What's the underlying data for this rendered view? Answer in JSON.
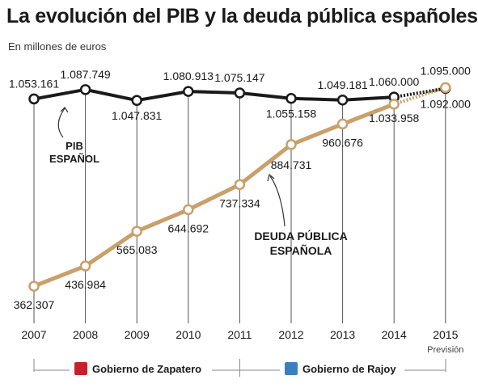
{
  "header": {
    "title": "La evolución del PIB y la deuda pública españoles",
    "subtitle": "En millones de euros"
  },
  "chart_data": {
    "type": "line",
    "x": [
      "2007",
      "2008",
      "2009",
      "2010",
      "2011",
      "2012",
      "2013",
      "2014",
      "2015"
    ],
    "x_sublabels": {
      "2015": "Previsión"
    },
    "series": [
      {
        "name": "PIB ESPAÑOL",
        "color": "#1a1a1a",
        "values": [
          1053161,
          1087749,
          1047831,
          1080913,
          1075147,
          1055158,
          1049181,
          1060000,
          1092000
        ],
        "labels": [
          "1.053.161",
          "1.087.749",
          "1.047.831",
          "1.080.913",
          "1.075.147",
          "1.055.158",
          "1.049.181",
          "1.060.000",
          "1.092.000"
        ],
        "forecast_from_index": 7
      },
      {
        "name": "DEUDA PÚBLICA ESPAÑOLA",
        "color": "#c9a06a",
        "values": [
          362307,
          436984,
          565083,
          644692,
          737334,
          884731,
          960676,
          1033958,
          1095000
        ],
        "labels": [
          "362.307",
          "436.984",
          "565.083",
          "644.692",
          "737.334",
          "884.731",
          "960.676",
          "1.033.958",
          "1.095.000"
        ],
        "forecast_from_index": 7
      }
    ],
    "annotations": [
      {
        "lines": [
          "PIB",
          "ESPAÑOL"
        ],
        "series": 0
      },
      {
        "lines": [
          "DEUDA PÚBLICA",
          "ESPAÑOLA"
        ],
        "series": 1
      }
    ],
    "legend": "none",
    "grid": false
  },
  "governments": [
    {
      "label": "Gobierno de Zapatero",
      "logo_color": "#c8202b",
      "logo_icon": "psoe-logo-icon"
    },
    {
      "label": "Gobierno de Rajoy",
      "logo_color": "#3a7fc4",
      "logo_icon": "pp-logo-icon"
    }
  ]
}
